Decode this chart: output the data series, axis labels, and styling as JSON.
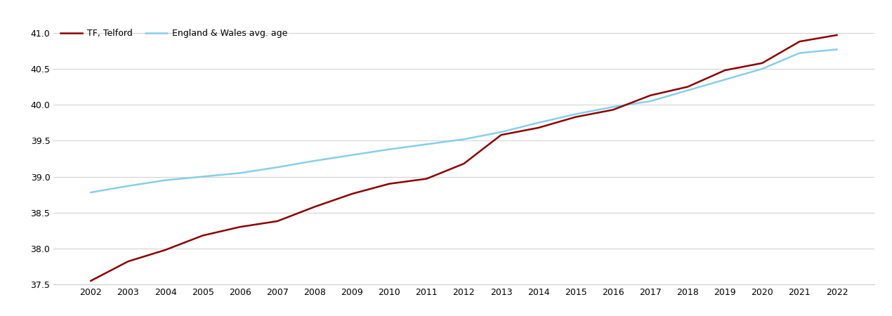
{
  "years": [
    2002,
    2003,
    2004,
    2005,
    2006,
    2007,
    2008,
    2009,
    2010,
    2011,
    2012,
    2013,
    2014,
    2015,
    2016,
    2017,
    2018,
    2019,
    2020,
    2021,
    2022
  ],
  "telford": [
    37.55,
    37.82,
    37.98,
    38.18,
    38.3,
    38.38,
    38.58,
    38.76,
    38.9,
    38.97,
    39.18,
    39.58,
    39.68,
    39.83,
    39.93,
    40.13,
    40.25,
    40.48,
    40.58,
    40.88,
    40.97
  ],
  "england_wales": [
    38.78,
    38.87,
    38.95,
    39.0,
    39.05,
    39.13,
    39.22,
    39.3,
    39.38,
    39.45,
    39.52,
    39.62,
    39.75,
    39.87,
    39.97,
    40.05,
    40.2,
    40.35,
    40.5,
    40.72,
    40.77
  ],
  "telford_color": "#8b0000",
  "england_wales_color": "#87ceeb",
  "telford_label": "TF, Telford",
  "england_wales_label": "England & Wales avg. age",
  "ylim": [
    37.5,
    41.15
  ],
  "yticks": [
    37.5,
    38.0,
    38.5,
    39.0,
    39.5,
    40.0,
    40.5,
    41.0
  ],
  "background_color": "#ffffff",
  "grid_color": "#d3d3d3",
  "linewidth": 1.8,
  "tick_fontsize": 9
}
